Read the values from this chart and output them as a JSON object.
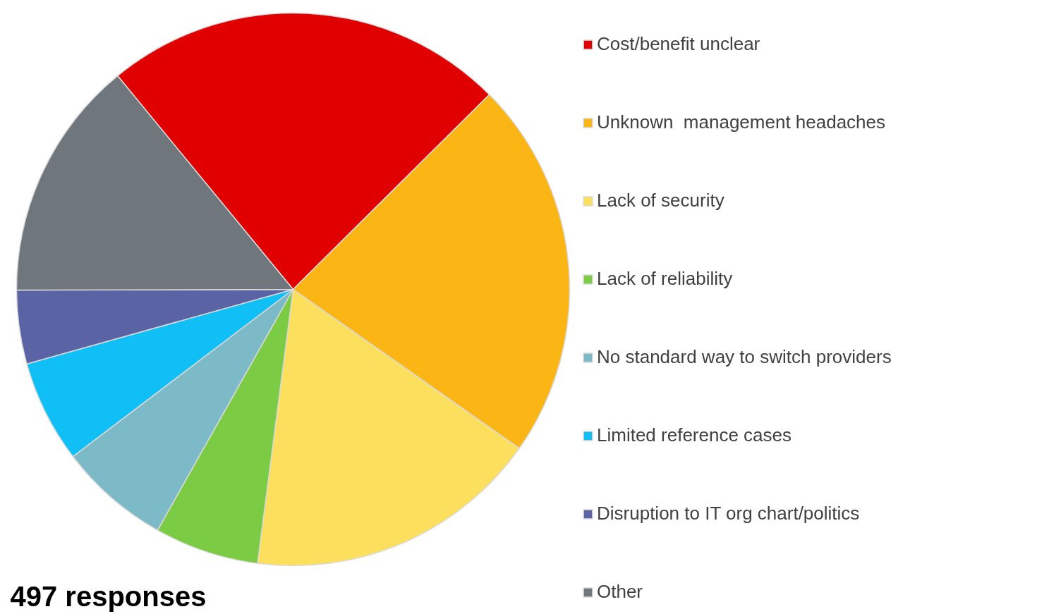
{
  "chart_data": {
    "type": "pie",
    "categories": [
      "Cost/benefit unclear",
      "Unknown  management headaches",
      "Lack of security",
      "Lack of reliability",
      "No standard way to switch providers",
      "Limited reference cases",
      "Disruption to IT org chart/politics",
      "Other"
    ],
    "values": [
      23.5,
      22.2,
      17.3,
      6.1,
      6.5,
      6.0,
      4.3,
      14.1
    ],
    "colors": [
      "#e00000",
      "#fbb515",
      "#fddf5e",
      "#7ccb44",
      "#7bbac6",
      "#10bff5",
      "#5a64a4",
      "#6f777d"
    ],
    "legend": "right",
    "annotations": [
      "497 responses"
    ]
  }
}
